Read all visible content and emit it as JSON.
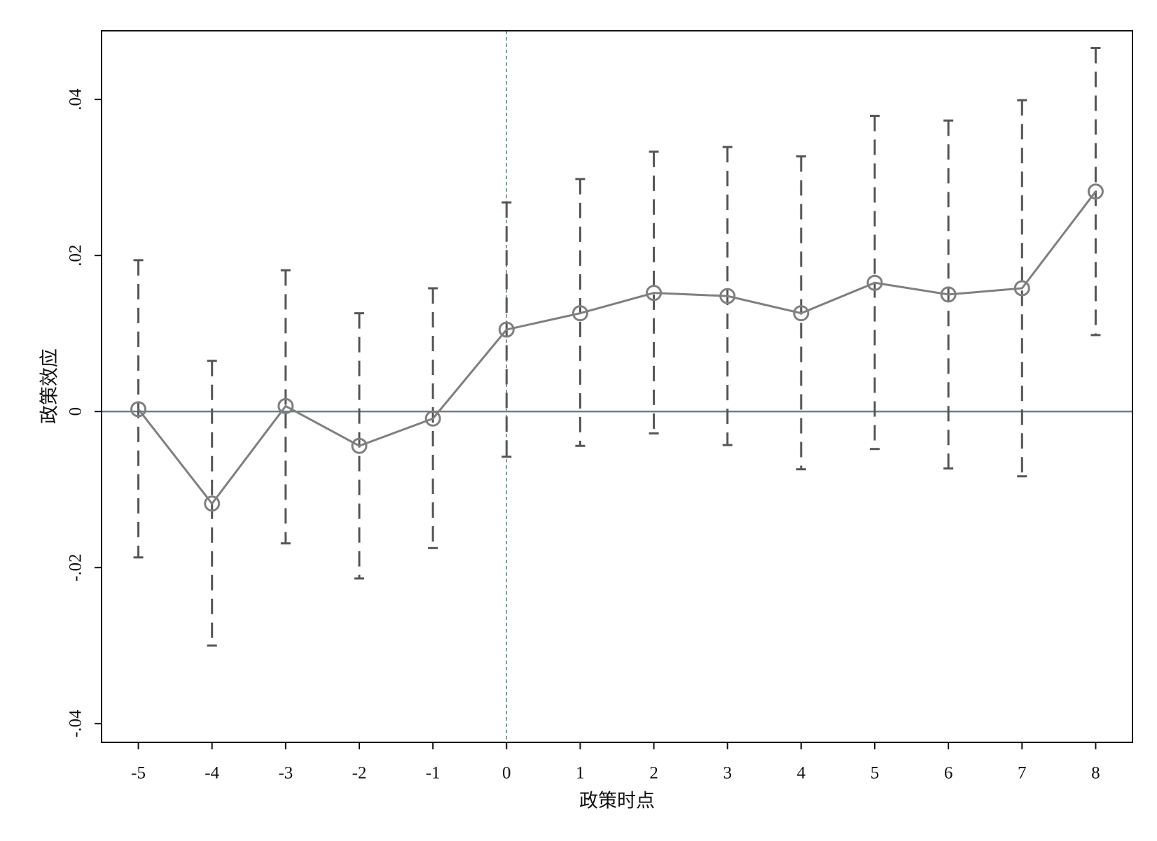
{
  "chart_data": {
    "type": "event-study",
    "xlabel": "政策时点",
    "ylabel": "政策效应",
    "x": [
      -5,
      -4,
      -3,
      -2,
      -1,
      0,
      1,
      2,
      3,
      4,
      5,
      6,
      7,
      8
    ],
    "series": [
      {
        "color": "#7f7f7f",
        "ci_color": "#555555",
        "values": [
          0.0003,
          -0.0118,
          0.0007,
          -0.0044,
          -0.0009,
          0.0105,
          0.0126,
          0.0152,
          0.0148,
          0.0126,
          0.0165,
          0.015,
          0.0158,
          0.0282
        ],
        "upper": [
          0.0194,
          0.0065,
          0.0181,
          0.0126,
          0.0158,
          0.0268,
          0.0298,
          0.0333,
          0.0339,
          0.0327,
          0.0379,
          0.0373,
          0.0399,
          0.0466
        ],
        "lower": [
          -0.0187,
          -0.03,
          -0.0169,
          -0.0214,
          -0.0175,
          -0.0058,
          -0.0044,
          -0.0028,
          -0.0043,
          -0.0074,
          -0.0048,
          -0.0073,
          -0.0083,
          0.0098
        ]
      }
    ],
    "xlim": [
      -5.5,
      8.5
    ],
    "ylim": [
      -0.0424,
      0.0488
    ],
    "xticks": [
      -5,
      -4,
      -3,
      -2,
      -1,
      0,
      1,
      2,
      3,
      4,
      5,
      6,
      7,
      8
    ],
    "yticks": [
      {
        "value": -0.04,
        "label": "-.04"
      },
      {
        "value": -0.02,
        "label": "-.02"
      },
      0,
      {
        "value": 0.02,
        "label": ".02"
      },
      {
        "value": 0.04,
        "label": ".04"
      }
    ],
    "hline": 0,
    "hline_color": "#6a7f8c",
    "vline": 0,
    "vline_color": "#6f8f80"
  }
}
